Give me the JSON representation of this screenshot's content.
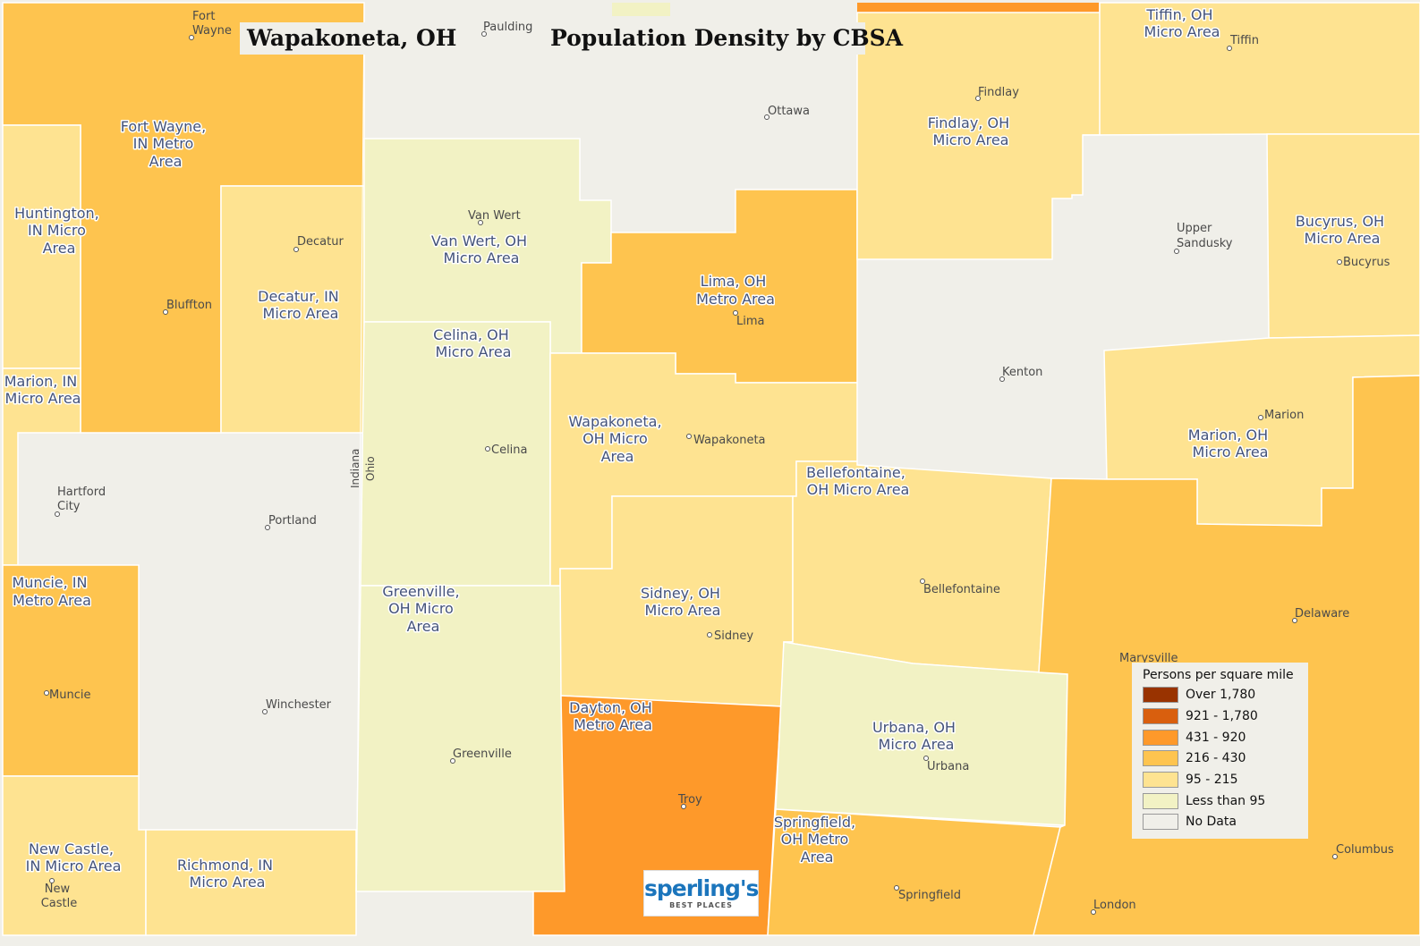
{
  "title": "Wapakoneta, OH",
  "subtitle": "Population Density by CBSA",
  "colors": {
    "over_1780": "#993300",
    "c921_1780": "#d95f0e",
    "c431_920": "#fe992a",
    "c216_430": "#fec44f",
    "c95_215": "#fee391",
    "lt95": "#f2f2c4",
    "nodata": "#f0efe9"
  },
  "legend": {
    "title": "Persons per square mile",
    "items": [
      {
        "label": "Over 1,780",
        "color": "#993300"
      },
      {
        "label": "921 - 1,780",
        "color": "#d95f0e"
      },
      {
        "label": "431 - 920",
        "color": "#fe992a"
      },
      {
        "label": "216 - 430",
        "color": "#fec44f"
      },
      {
        "label": "95 - 215",
        "color": "#fee391"
      },
      {
        "label": "Less than 95",
        "color": "#f2f2c4"
      },
      {
        "label": "No Data",
        "color": "#f0efe9"
      }
    ]
  },
  "areas": {
    "fort_wayne": [
      "Fort Wayne,",
      "IN Metro",
      "Area"
    ],
    "huntington": [
      "Huntington,",
      "IN Micro",
      "Area"
    ],
    "decatur": [
      "Decatur, IN",
      "Micro Area"
    ],
    "marion_in": [
      "Marion, IN",
      "Micro Area"
    ],
    "muncie": [
      "Muncie, IN",
      "Metro Area"
    ],
    "new_castle": [
      "New Castle,",
      "IN Micro Area"
    ],
    "richmond": [
      "Richmond, IN",
      "Micro Area"
    ],
    "van_wert": [
      "Van Wert, OH",
      "Micro Area"
    ],
    "celina": [
      "Celina, OH",
      "Micro Area"
    ],
    "greenville": [
      "Greenville,",
      "OH Micro",
      "Area"
    ],
    "lima": [
      "Lima, OH",
      "Metro Area"
    ],
    "wapakoneta": [
      "Wapakoneta,",
      "OH Micro",
      "Area"
    ],
    "sidney": [
      "Sidney, OH",
      "Micro Area"
    ],
    "dayton": [
      "Dayton, OH",
      "Metro Area"
    ],
    "bellefontaine": [
      "Bellefontaine,",
      "OH Micro Area"
    ],
    "urbana": [
      "Urbana, OH",
      "Micro Area"
    ],
    "springfield": [
      "Springfield,",
      "OH Metro",
      "Area"
    ],
    "findlay": [
      "Findlay, OH",
      "Micro Area"
    ],
    "tiffin": [
      "Tiffin, OH",
      "Micro Area"
    ],
    "bucyrus": [
      "Bucyrus, OH",
      "Micro Area"
    ],
    "marion_oh": [
      "Marion, OH",
      "Micro Area"
    ]
  },
  "cities": {
    "fort_wayne": [
      "Fort",
      "Wayne"
    ],
    "paulding": "Paulding",
    "ottawa": "Ottawa",
    "findlay": "Findlay",
    "tiffin": "Tiffin",
    "van_wert": "Van Wert",
    "decatur": "Decatur",
    "bluffton": "Bluffton",
    "upper_sandusky": [
      "Upper",
      "Sandusky"
    ],
    "bucyrus": "Bucyrus",
    "lima": "Lima",
    "kenton": "Kenton",
    "celina": "Celina",
    "wapakoneta": "Wapakoneta",
    "marion": "Marion",
    "hartford_city": [
      "Hartford",
      "City"
    ],
    "portland": "Portland",
    "bellefontaine": "Bellefontaine",
    "delaware": "Delaware",
    "sidney": "Sidney",
    "marysville": "Marysville",
    "muncie": "Muncie",
    "winchester": "Winchester",
    "greenville": "Greenville",
    "urbana": "Urbana",
    "troy": "Troy",
    "columbus": "Columbus",
    "new_castle": [
      "New",
      "Castle"
    ],
    "springfield": "Springfield",
    "london": "London"
  },
  "states": {
    "indiana": "Indiana",
    "ohio": "Ohio"
  },
  "logo": {
    "name": "sperling's",
    "tagline": "BEST PLACES"
  }
}
